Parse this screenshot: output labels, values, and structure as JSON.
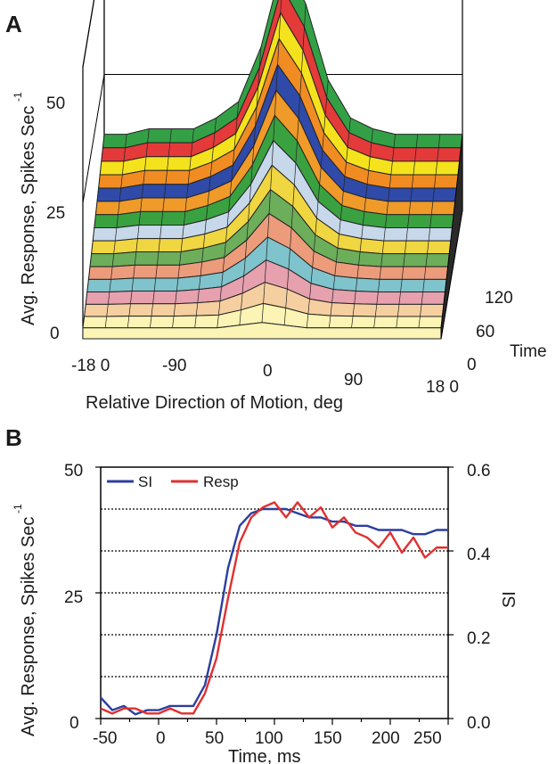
{
  "panels": {
    "a_letter": "A",
    "b_letter": "B"
  },
  "colors": {
    "si": "#2b3f9e",
    "resp": "#e03030",
    "grid": "#000000"
  },
  "chart_data": [
    {
      "type": "area",
      "subtype": "3d-waterfall",
      "ylabel": "Avg. Response, Spikes Sec",
      "ylabel_superscript": "-1",
      "xlabel": "Relative Direction of Motion, deg",
      "zlabel": "Time",
      "x_ticks": [
        "-18 0",
        "-90",
        "0",
        "90",
        "18 0"
      ],
      "y_ticks": [
        "0",
        "25",
        "50"
      ],
      "z_ticks": [
        "0",
        "60",
        "120"
      ],
      "ylim": [
        0,
        50
      ],
      "x": [
        -180,
        -157.5,
        -135,
        -112.5,
        -90,
        -67.5,
        -45,
        -22.5,
        0,
        22.5,
        45,
        67.5,
        90,
        112.5,
        135,
        157.5,
        180
      ],
      "layer_colors": [
        "#fbf4b4",
        "#f6cfa0",
        "#e6a0ae",
        "#7fc3cc",
        "#ec9c7a",
        "#6cae5a",
        "#f0d640",
        "#c6d8ea",
        "#3aa140",
        "#f09a2a",
        "#2f4aa8",
        "#f08c22",
        "#f4e21c",
        "#e43a3a",
        "#34a046"
      ],
      "curve": {
        "base_at_time_0": [
          2,
          2,
          2,
          2,
          2,
          2,
          2,
          2.5,
          3,
          2.5,
          2,
          2,
          2,
          2,
          2,
          2,
          2
        ],
        "peak_at_time_120": [
          14,
          14,
          15,
          15,
          15,
          17,
          20,
          30,
          46,
          38,
          24,
          17,
          15,
          14,
          14,
          14,
          14
        ]
      }
    },
    {
      "type": "line",
      "xlabel": "Time, ms",
      "ylabel": "Avg. Response, Spikes Sec",
      "ylabel_superscript": "-1",
      "y2label": "SI",
      "x_ticks": [
        "-50",
        "0",
        "50",
        "100",
        "150",
        "200",
        "250"
      ],
      "y_ticks": [
        "0",
        "25",
        "50"
      ],
      "y2_ticks": [
        "0.0",
        "0.2",
        "0.4",
        "0.6"
      ],
      "xlim": [
        -50,
        250
      ],
      "ylim": [
        0,
        50
      ],
      "y2lim": [
        0,
        0.6
      ],
      "grid": "horizontal dotted",
      "legend": "top-left",
      "series": [
        {
          "name": "SI",
          "axis": "y2",
          "x": [
            -50,
            -40,
            -30,
            -20,
            -10,
            0,
            10,
            20,
            30,
            40,
            50,
            60,
            70,
            80,
            90,
            100,
            110,
            120,
            130,
            140,
            150,
            160,
            170,
            180,
            190,
            200,
            210,
            220,
            230,
            240,
            250
          ],
          "values": [
            0.05,
            0.02,
            0.03,
            0.01,
            0.02,
            0.02,
            0.03,
            0.03,
            0.03,
            0.08,
            0.2,
            0.36,
            0.46,
            0.49,
            0.5,
            0.5,
            0.5,
            0.49,
            0.48,
            0.48,
            0.47,
            0.47,
            0.46,
            0.46,
            0.45,
            0.45,
            0.45,
            0.44,
            0.44,
            0.45,
            0.45
          ]
        },
        {
          "name": "Resp",
          "axis": "y",
          "x": [
            -50,
            -40,
            -30,
            -20,
            -10,
            0,
            10,
            20,
            30,
            40,
            50,
            60,
            70,
            80,
            90,
            100,
            110,
            120,
            130,
            140,
            150,
            160,
            170,
            180,
            190,
            200,
            210,
            220,
            230,
            240,
            250
          ],
          "values": [
            2,
            1,
            2,
            2,
            1,
            1,
            2,
            1,
            1,
            5,
            12,
            24,
            35,
            40,
            42,
            43,
            40,
            43,
            40,
            42,
            38,
            40,
            37,
            36,
            34,
            37,
            33,
            36,
            32,
            34,
            34
          ]
        }
      ]
    }
  ]
}
